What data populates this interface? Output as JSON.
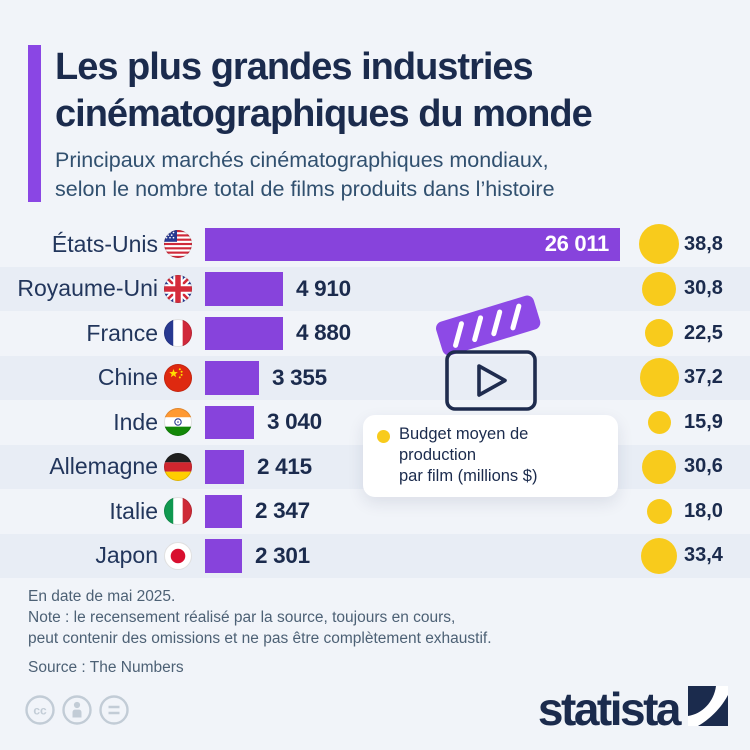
{
  "header": {
    "title_line1": "Les plus grandes industries",
    "title_line2": "cinématographiques du monde",
    "subtitle_line1": "Principaux marchés cinématographiques mondiaux,",
    "subtitle_line2": "selon le nombre total de films produits dans l’histoire"
  },
  "rows": [
    {
      "country": "États-Unis",
      "flag": "us",
      "films": 26011,
      "films_label": "26 011",
      "budget": 38.8,
      "budget_label": "38,8"
    },
    {
      "country": "Royaume-Uni",
      "flag": "uk",
      "films": 4910,
      "films_label": "4 910",
      "budget": 30.8,
      "budget_label": "30,8"
    },
    {
      "country": "France",
      "flag": "fr",
      "films": 4880,
      "films_label": "4 880",
      "budget": 22.5,
      "budget_label": "22,5"
    },
    {
      "country": "Chine",
      "flag": "cn",
      "films": 3355,
      "films_label": "3 355",
      "budget": 37.2,
      "budget_label": "37,2"
    },
    {
      "country": "Inde",
      "flag": "in",
      "films": 3040,
      "films_label": "3 040",
      "budget": 15.9,
      "budget_label": "15,9"
    },
    {
      "country": "Allemagne",
      "flag": "de",
      "films": 2415,
      "films_label": "2 415",
      "budget": 30.6,
      "budget_label": "30,6"
    },
    {
      "country": "Italie",
      "flag": "it",
      "films": 2347,
      "films_label": "2 347",
      "budget": 18.0,
      "budget_label": "18,0"
    },
    {
      "country": "Japon",
      "flag": "jp",
      "films": 2301,
      "films_label": "2 301",
      "budget": 33.4,
      "budget_label": "33,4"
    }
  ],
  "legend": {
    "line1": "Budget moyen de production",
    "line2": "par film (millions $)"
  },
  "footer": {
    "date": "En date de mai 2025.",
    "note_line1": "Note : le recensement réalisé par la source, toujours en cours,",
    "note_line2": "peut contenir des omissions et ne pas être complètement exhaustif.",
    "source": "Source : The Numbers"
  },
  "branding": {
    "logo_text": "statista"
  },
  "icons": {
    "center_illustration": "film-clapperboard-play-icon",
    "license": [
      "cc-icon",
      "attribution-person-icon",
      "no-derivatives-equals-icon"
    ],
    "flags": [
      "us-flag-icon",
      "uk-flag-icon",
      "fr-flag-icon",
      "cn-flag-icon",
      "in-flag-icon",
      "de-flag-icon",
      "it-flag-icon",
      "jp-flag-icon"
    ]
  },
  "colors": {
    "background": "#f1f4f9",
    "row_stripe": "#e8edf5",
    "bar_purple": "#8743dc",
    "accent_purple": "#8a46e4",
    "bubble_yellow": "#f8cb1c",
    "navy_text": "#1b2b4d",
    "note_text": "#4d6175"
  },
  "chart_data": {
    "type": "bar",
    "orientation": "horizontal",
    "title": "Les plus grandes industries cinématographiques du monde",
    "subtitle": "Principaux marchés cinématographiques mondiaux, selon le nombre total de films produits dans l’histoire",
    "categories": [
      "États-Unis",
      "Royaume-Uni",
      "France",
      "Chine",
      "Inde",
      "Allemagne",
      "Italie",
      "Japon"
    ],
    "series": [
      {
        "name": "Nombre total de films produits dans l’histoire",
        "values": [
          26011,
          4910,
          4880,
          3355,
          3040,
          2415,
          2347,
          2301
        ]
      },
      {
        "name": "Budget moyen de production par film (millions $)",
        "values": [
          38.8,
          30.8,
          22.5,
          37.2,
          15.9,
          30.6,
          18.0,
          33.4
        ]
      }
    ],
    "xlim": [
      0,
      26011
    ],
    "grid": false,
    "legend_position": "center-right-overlay",
    "source": "The Numbers",
    "as_of": "mai 2025"
  }
}
